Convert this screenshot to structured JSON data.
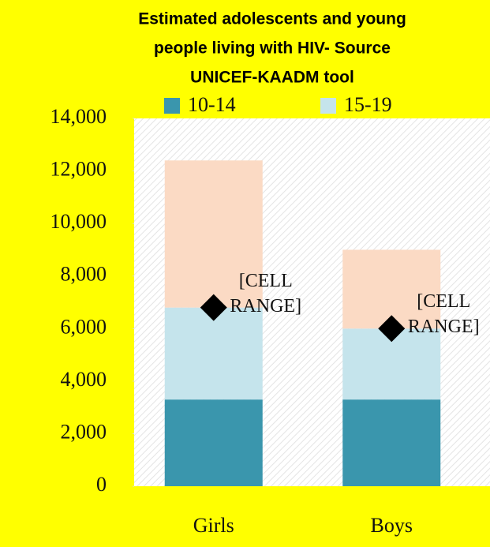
{
  "chart_data": {
    "type": "bar",
    "title": [
      "Estimated adolescents and young",
      "people living with HIV- Source",
      "UNICEF-KAADM tool"
    ],
    "categories": [
      "Girls",
      "Boys"
    ],
    "series": [
      {
        "name": "10-14",
        "color": "#3a96ad",
        "values": [
          3300,
          3300
        ]
      },
      {
        "name": "15-19",
        "color": "#c5e4ec",
        "values": [
          3500,
          2700
        ]
      },
      {
        "color": "#fbdac4",
        "values": [
          5600,
          3000
        ]
      }
    ],
    "markers": {
      "color": "#000000",
      "values": [
        6800,
        6000
      ],
      "value_labels": [
        "[CELL RANGE]",
        "[CELL RANGE]"
      ]
    },
    "stacked": true,
    "ylim": [
      0,
      14000
    ],
    "yticks": [
      0,
      {
        "value": 2000,
        "label": "2,000"
      },
      {
        "value": 4000,
        "label": "4,000"
      },
      {
        "value": 6000,
        "label": "6,000"
      },
      {
        "value": 8000,
        "label": "8,000"
      },
      {
        "value": 10000,
        "label": "10,000"
      },
      {
        "value": 12000,
        "label": "12,000"
      },
      {
        "value": 14000,
        "label": "14,000"
      }
    ],
    "legend": "top"
  }
}
